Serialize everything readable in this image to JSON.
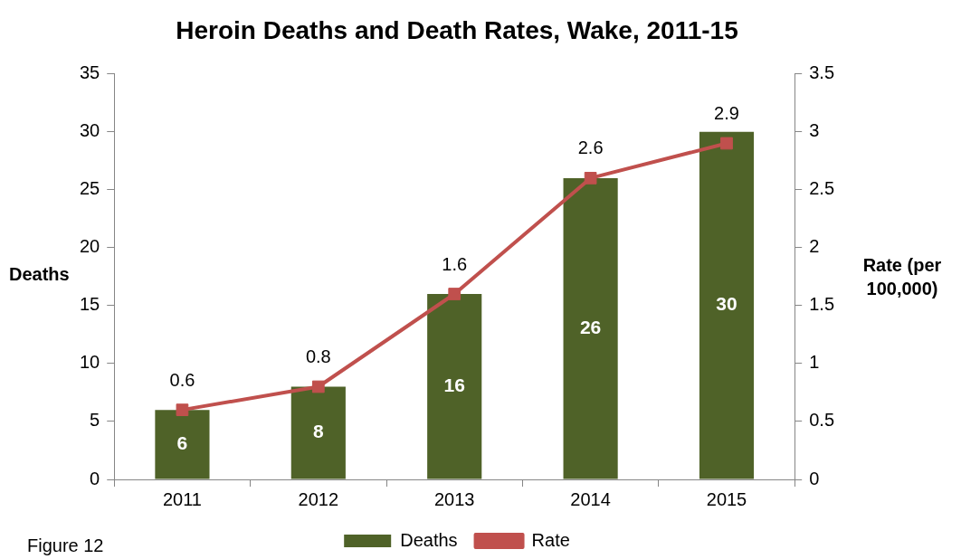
{
  "chart_data": {
    "type": "bar",
    "title": "Heroin Deaths and Death Rates, Wake, 2011-15",
    "ylabel": "Deaths",
    "y2label": "Rate (per 100,000)",
    "categories": [
      "2011",
      "2012",
      "2013",
      "2014",
      "2015"
    ],
    "series": [
      {
        "name": "Deaths",
        "color": "#4f6228",
        "values": [
          6,
          8,
          16,
          26,
          30
        ]
      },
      {
        "name": "Rate",
        "type": "line",
        "axis": "y2",
        "color": "#c0504d",
        "values": [
          0.6,
          0.8,
          1.6,
          2.6,
          2.9
        ]
      }
    ],
    "ylim": [
      0,
      35
    ],
    "yticks": [
      0,
      5,
      10,
      15,
      20,
      25,
      30,
      35
    ],
    "y2lim": [
      0,
      3.5
    ],
    "y2ticks": [
      0,
      0.5,
      1,
      1.5,
      2,
      2.5,
      3,
      3.5
    ],
    "grid": false,
    "legend": "bottom",
    "data_labels": true,
    "marker": "square",
    "line_style": "solid",
    "annotations": [
      "Figure 12"
    ]
  }
}
